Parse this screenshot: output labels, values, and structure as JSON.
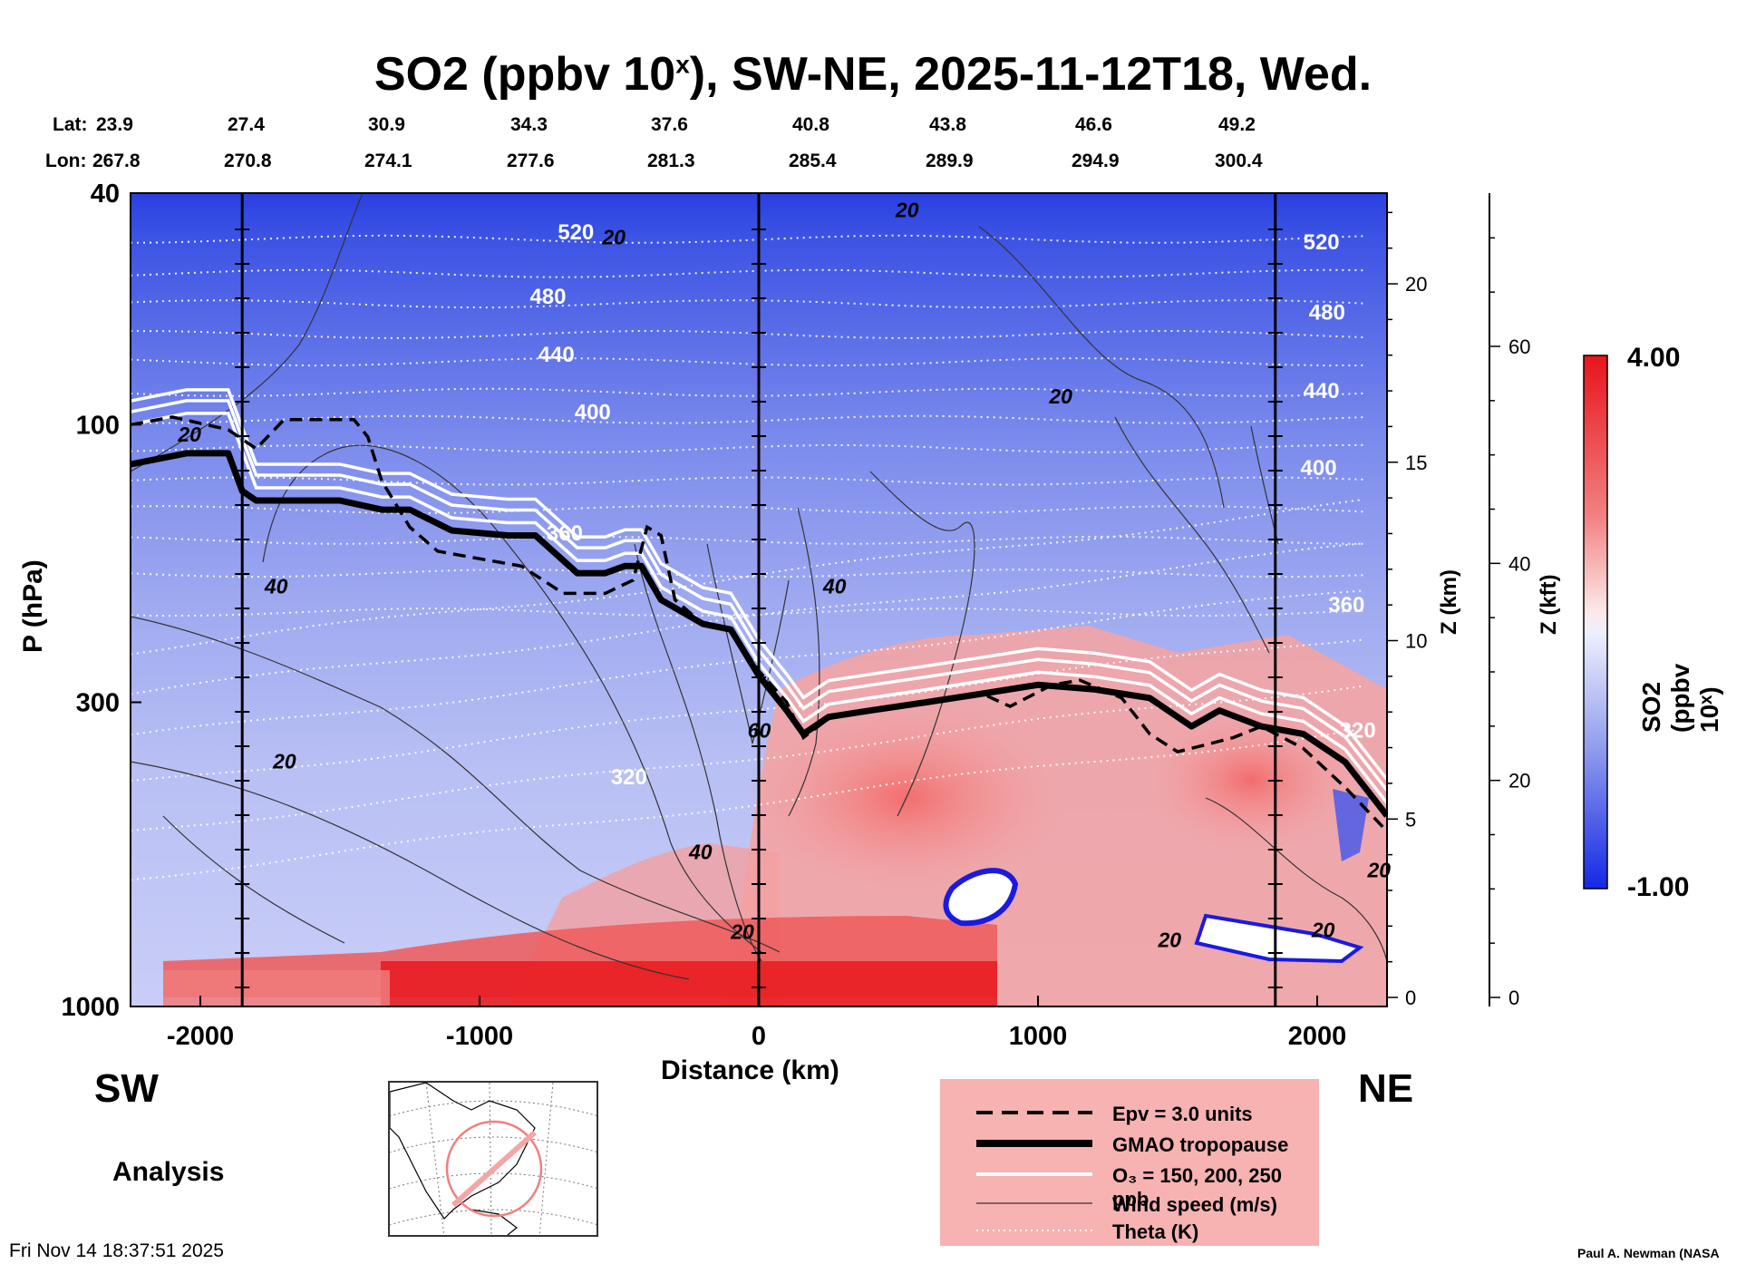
{
  "title": {
    "main": "SO2 (ppbv 10",
    "sup": "x",
    "rest": "), SW-NE, 2025-11-12T18, Wed."
  },
  "header": {
    "lat_label": "Lat:",
    "lon_label": "Lon:",
    "lats": [
      "23.9",
      "27.4",
      "30.9",
      "34.3",
      "37.6",
      "40.8",
      "43.8",
      "46.6",
      "49.2"
    ],
    "lons": [
      "267.8",
      "270.8",
      "274.1",
      "277.6",
      "281.3",
      "285.4",
      "289.9",
      "294.9",
      "300.4"
    ]
  },
  "labels": {
    "sw": "SW",
    "ne": "NE",
    "analysis": "Analysis",
    "timestamp": "Fri Nov 14 18:37:51 2025",
    "credit": "Paul A. Newman (NASA"
  },
  "legend": {
    "epv": "Epv = 3.0 units",
    "tropopause": "GMAO tropopause",
    "o3": "O₃ = 150, 200, 250 ppb",
    "wind": "Wind speed (m/s)",
    "theta": "Theta (K)"
  },
  "colorbar": {
    "max_label": "4.00",
    "min_label": "-1.00",
    "title": "SO2 (ppbv 10ˣ)",
    "high_color": "#e8141c",
    "low_color": "#1428e6"
  },
  "chart_data": {
    "type": "contour-cross-section",
    "title": "SO2 (ppbv 10^x), SW-NE, 2025-11-12T18, Wed.",
    "xlabel": "Distance (km)",
    "ylabel": "P (hPa)",
    "right_axis1_label": "Z (km)",
    "right_axis2_label": "Z (kft)",
    "xlim": [
      -2250,
      2250
    ],
    "ylim": [
      1000,
      40
    ],
    "x_ticks": [
      -2000,
      -1000,
      0,
      1000,
      2000
    ],
    "x_tick_labels": [
      "-2000",
      "-1000",
      "0",
      "1000",
      "2000"
    ],
    "p_ticks": [
      40,
      100,
      300,
      1000
    ],
    "p_tick_labels": [
      "40",
      "100",
      "300",
      "1000"
    ],
    "z_km_ticks": [
      0,
      5,
      10,
      15,
      20
    ],
    "z_km_labels": [
      "0",
      "5",
      "10",
      "15",
      "20"
    ],
    "z_kft_ticks": [
      0,
      20,
      40,
      60
    ],
    "z_kft_labels": [
      "0",
      "20",
      "40",
      "60"
    ],
    "colorbar_range": [
      -1.0,
      4.0
    ],
    "vertical_lines_km": [
      -1850,
      0,
      1850
    ],
    "theta_labels": [
      {
        "text": "520",
        "x": -720,
        "p": 48
      },
      {
        "text": "480",
        "x": -820,
        "p": 62
      },
      {
        "text": "440",
        "x": -790,
        "p": 78
      },
      {
        "text": "400",
        "x": -660,
        "p": 98
      },
      {
        "text": "360",
        "x": -760,
        "p": 158
      },
      {
        "text": "320",
        "x": -530,
        "p": 415
      },
      {
        "text": "520",
        "x": 1950,
        "p": 50
      },
      {
        "text": "480",
        "x": 1970,
        "p": 66
      },
      {
        "text": "440",
        "x": 1950,
        "p": 90
      },
      {
        "text": "400",
        "x": 1940,
        "p": 122
      },
      {
        "text": "360",
        "x": 2040,
        "p": 210
      },
      {
        "text": "320",
        "x": 2080,
        "p": 345
      }
    ],
    "wind_labels": [
      {
        "text": "20",
        "x": -2080,
        "p": 107
      },
      {
        "text": "40",
        "x": -1770,
        "p": 195
      },
      {
        "text": "20",
        "x": -1740,
        "p": 390
      },
      {
        "text": "40",
        "x": -250,
        "p": 558
      },
      {
        "text": "20",
        "x": -100,
        "p": 765
      },
      {
        "text": "60",
        "x": -40,
        "p": 345
      },
      {
        "text": "40",
        "x": 230,
        "p": 195
      },
      {
        "text": "20",
        "x": -560,
        "p": 49
      },
      {
        "text": "20",
        "x": 490,
        "p": 44
      },
      {
        "text": "20",
        "x": 1040,
        "p": 92
      },
      {
        "text": "20",
        "x": 1430,
        "p": 790
      },
      {
        "text": "20",
        "x": 1980,
        "p": 760
      },
      {
        "text": "20",
        "x": 2180,
        "p": 600
      }
    ],
    "tropopause_km": [
      -2250,
      -2050,
      -1900,
      -1850,
      -1800,
      -1650,
      -1500,
      -1350,
      -1250,
      -1100,
      -900,
      -800,
      -650,
      -550,
      -480,
      -420,
      -350,
      -200,
      -100,
      0,
      100,
      160,
      250,
      400,
      600,
      800,
      1000,
      1200,
      1400,
      1550,
      1650,
      1800,
      1950,
      2100,
      2250
    ],
    "tropopause_p": [
      117,
      112,
      112,
      130,
      135,
      135,
      135,
      140,
      140,
      152,
      155,
      155,
      180,
      180,
      175,
      175,
      200,
      220,
      225,
      270,
      310,
      340,
      318,
      310,
      300,
      290,
      280,
      285,
      295,
      330,
      310,
      330,
      340,
      380,
      470
    ],
    "epv_km": [
      -2250,
      -2100,
      -1900,
      -1800,
      -1700,
      -1550,
      -1450,
      -1400,
      -1350,
      -1250,
      -1150,
      -1000,
      -850,
      -700,
      -550,
      -450,
      -400,
      -350,
      -300,
      -200,
      -100,
      0,
      100,
      160,
      250,
      400,
      600,
      800,
      900,
      1050,
      1150,
      1300,
      1400,
      1500,
      1600,
      1700,
      1800,
      1950,
      2100,
      2250
    ],
    "epv_p": [
      100,
      97,
      102,
      110,
      98,
      98,
      98,
      105,
      125,
      150,
      165,
      170,
      175,
      195,
      195,
      185,
      150,
      155,
      200,
      220,
      225,
      265,
      300,
      345,
      320,
      310,
      300,
      290,
      305,
      280,
      275,
      295,
      340,
      365,
      355,
      345,
      330,
      360,
      420,
      500
    ],
    "series_legend": [
      "Epv = 3.0 units",
      "GMAO tropopause",
      "O3 = 150, 200, 250 ppb",
      "Wind speed (m/s)",
      "Theta (K)"
    ]
  }
}
